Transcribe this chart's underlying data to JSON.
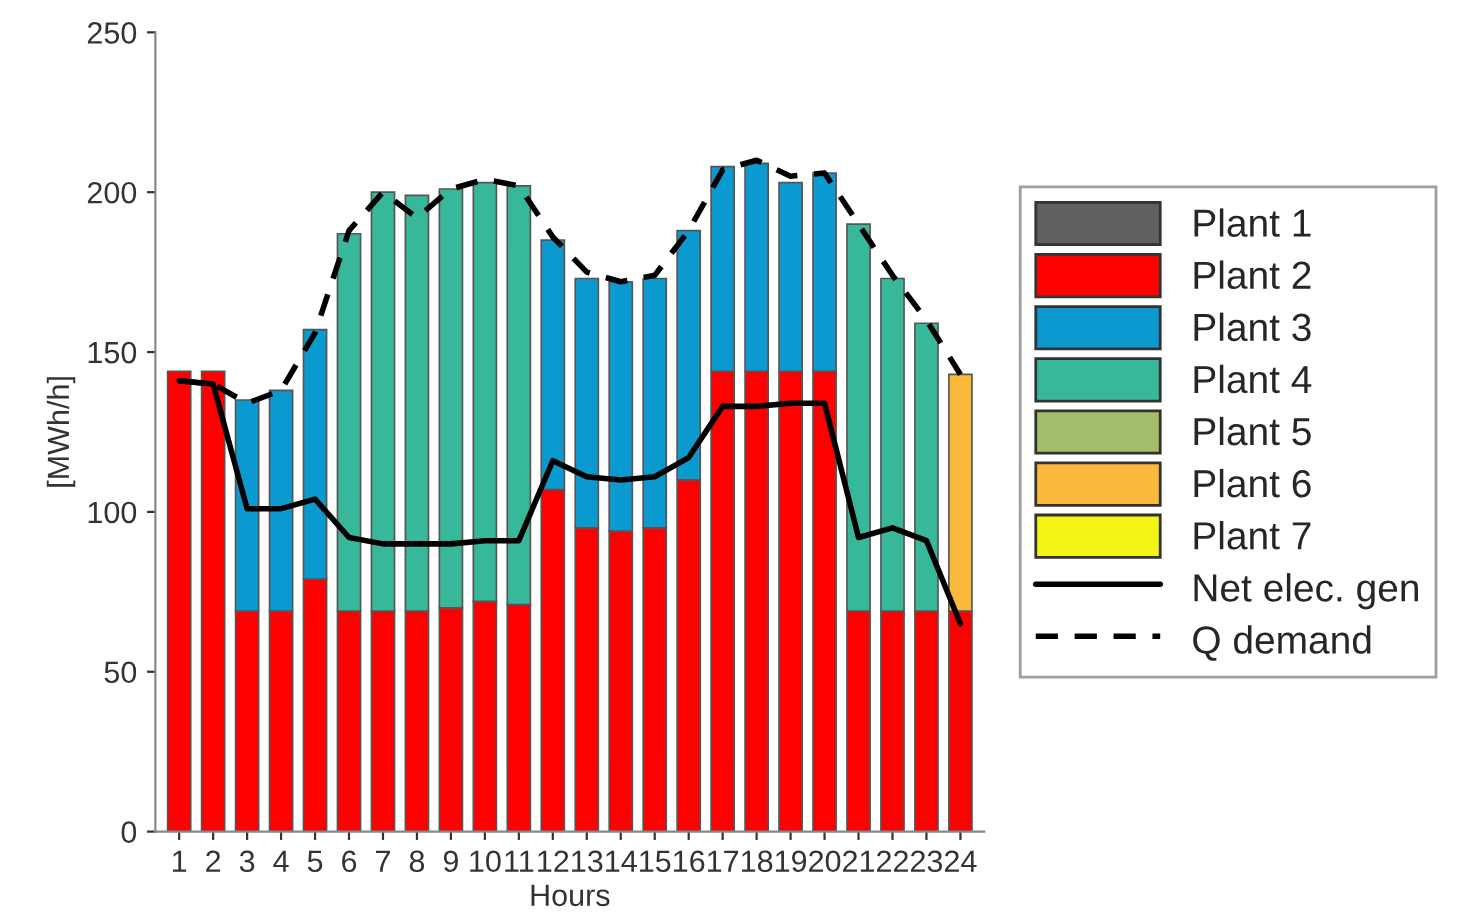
{
  "chart_data": {
    "type": "bar",
    "stacked": true,
    "xlabel": "Hours",
    "ylabel": "[MWh/h]",
    "categories": [
      "1",
      "2",
      "3",
      "4",
      "5",
      "6",
      "7",
      "8",
      "9",
      "10",
      "11",
      "12",
      "13",
      "14",
      "15",
      "16",
      "17",
      "18",
      "19",
      "20",
      "21",
      "22",
      "23",
      "24"
    ],
    "ylim": [
      0,
      250
    ],
    "yticks": [
      0,
      50,
      100,
      150,
      200,
      250
    ],
    "grid": false,
    "legend": "right",
    "series": [
      {
        "name": "Plant 1",
        "color": "#606060",
        "values": [
          null,
          null,
          null,
          null,
          null,
          null,
          null,
          null,
          null,
          null,
          null,
          null,
          null,
          null,
          null,
          null,
          null,
          null,
          null,
          null,
          null,
          null,
          null,
          null
        ]
      },
      {
        "name": "Plant 2",
        "color": "#ff0000",
        "values": [
          144,
          144,
          69,
          69,
          79,
          69,
          69,
          69,
          70,
          72,
          71,
          107,
          95,
          94,
          95,
          110,
          144,
          144,
          144,
          144,
          69,
          69,
          69,
          69
        ]
      },
      {
        "name": "Plant 3",
        "color": "#0a9ad0",
        "values": [
          null,
          null,
          66,
          69,
          78,
          null,
          null,
          null,
          null,
          null,
          null,
          78,
          78,
          78,
          78,
          78,
          64,
          65,
          59,
          62,
          null,
          null,
          null,
          null
        ]
      },
      {
        "name": "Plant 4",
        "color": "#38b89a",
        "values": [
          null,
          null,
          null,
          null,
          null,
          118,
          131,
          130,
          131,
          131,
          131,
          null,
          null,
          null,
          null,
          null,
          null,
          null,
          null,
          null,
          121,
          104,
          90,
          null
        ]
      },
      {
        "name": "Plant 5",
        "color": "#a2be6a",
        "values": [
          null,
          null,
          null,
          null,
          null,
          null,
          null,
          null,
          null,
          null,
          null,
          null,
          null,
          null,
          null,
          null,
          null,
          null,
          null,
          null,
          null,
          null,
          null,
          null
        ]
      },
      {
        "name": "Plant 6",
        "color": "#fbb93c",
        "values": [
          null,
          null,
          null,
          null,
          null,
          null,
          null,
          null,
          null,
          null,
          null,
          null,
          null,
          null,
          null,
          null,
          null,
          null,
          null,
          null,
          null,
          null,
          null,
          74
        ]
      },
      {
        "name": "Plant 7",
        "color": "#f5f515",
        "values": [
          null,
          null,
          null,
          null,
          null,
          null,
          null,
          null,
          null,
          null,
          null,
          null,
          null,
          null,
          null,
          null,
          null,
          null,
          null,
          null,
          null,
          null,
          null,
          null
        ]
      },
      {
        "name": "Net elec. gen",
        "type": "line",
        "color": "#000000",
        "line_style": "solid",
        "values": [
          141,
          140,
          101,
          101,
          104,
          92,
          90,
          90,
          90,
          91,
          91,
          116,
          111,
          110,
          111,
          117,
          133,
          133,
          134,
          134,
          92,
          95,
          91,
          65
        ]
      },
      {
        "name": "Q demand",
        "type": "line",
        "color": "#000000",
        "line_style": "dashed",
        "values": [
          141,
          140,
          134,
          138,
          156,
          188,
          200,
          192,
          201,
          204,
          202,
          186,
          175,
          172,
          174,
          188,
          207,
          210,
          205,
          206,
          190,
          174,
          160,
          143
        ]
      }
    ]
  }
}
